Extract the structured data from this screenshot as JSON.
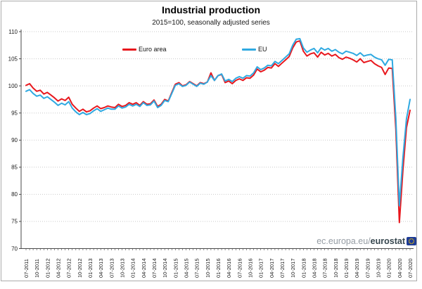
{
  "title": "Industrial production",
  "subtitle": "2015=100, seasonally adjusted series",
  "legend": [
    {
      "label": "Euro area",
      "color": "#e8171d"
    },
    {
      "label": "EU",
      "color": "#2fa9e1"
    }
  ],
  "watermark": {
    "prefix": "ec.europa.eu/",
    "bold": "eurostat"
  },
  "colors": {
    "euro_area": "#e8171d",
    "eu": "#2fa9e1",
    "grid": "#c9c9c9",
    "axis": "#4a4a4a",
    "tick_label": "#1a1a1a",
    "frame_border": "#ababab",
    "watermark_gray": "#959ca3",
    "watermark_dark": "#37474f",
    "flag_blue": "#1e3c96",
    "flag_stars": "#ffcc00"
  },
  "chart_data": {
    "type": "line",
    "title": "Industrial production",
    "subtitle": "2015=100, seasonally adjusted series",
    "xlabel": "",
    "ylabel": "",
    "ylim": [
      70,
      110
    ],
    "y_ticks": [
      70,
      75,
      80,
      85,
      90,
      95,
      100,
      105,
      110
    ],
    "grid": "horizontal-dotted",
    "legend_position": "top-inside",
    "x_frequency": "monthly",
    "months_per_tick": 3,
    "x_tick_labels": [
      "07-2011",
      "10-2011",
      "01-2012",
      "04-2012",
      "07-2012",
      "10-2012",
      "01-2013",
      "04-2013",
      "07-2013",
      "10-2013",
      "01-2014",
      "04-2014",
      "07-2014",
      "10-2014",
      "01-2015",
      "04-2015",
      "07-2015",
      "10-2015",
      "01-2016",
      "04-2016",
      "07-2016",
      "10-2016",
      "01-2017",
      "04-2017",
      "07-2017",
      "10-2017",
      "01-2018",
      "04-2018",
      "07-2018",
      "10-2018",
      "01-2019",
      "04-2019",
      "07-2019",
      "10-2019",
      "01-2020",
      "04-2020",
      "07-2020"
    ],
    "series": [
      {
        "name": "Euro area",
        "color": "#e8171d",
        "values": [
          100.1,
          100.4,
          99.6,
          99.0,
          99.2,
          98.5,
          98.8,
          98.3,
          97.8,
          97.2,
          97.6,
          97.3,
          97.9,
          96.6,
          95.9,
          95.3,
          95.7,
          95.2,
          95.4,
          95.9,
          96.3,
          95.8,
          96.0,
          96.3,
          96.1,
          96.0,
          96.6,
          96.2,
          96.4,
          96.9,
          96.6,
          96.9,
          96.4,
          97.1,
          96.6,
          96.7,
          97.4,
          96.2,
          96.6,
          97.5,
          97.2,
          98.8,
          100.3,
          100.6,
          100.0,
          100.2,
          100.8,
          100.4,
          100.0,
          100.6,
          100.4,
          100.7,
          102.4,
          101.0,
          101.9,
          102.1,
          100.6,
          100.9,
          100.4,
          101.0,
          101.3,
          101.0,
          101.5,
          101.4,
          102.0,
          103.1,
          102.6,
          102.9,
          103.4,
          103.3,
          104.1,
          103.6,
          104.2,
          104.8,
          105.4,
          107.0,
          108.1,
          108.3,
          106.4,
          105.5,
          105.9,
          106.1,
          105.3,
          106.2,
          105.7,
          106.0,
          105.5,
          105.8,
          105.2,
          104.9,
          105.3,
          105.1,
          104.8,
          104.4,
          105.0,
          104.3,
          104.5,
          104.7,
          104.1,
          103.7,
          103.4,
          102.1,
          103.3,
          103.2,
          92.0,
          74.8,
          84.5,
          92.3,
          95.5
        ]
      },
      {
        "name": "EU",
        "color": "#2fa9e1",
        "values": [
          99.0,
          99.3,
          98.6,
          98.1,
          98.3,
          97.7,
          98.0,
          97.5,
          97.0,
          96.4,
          96.8,
          96.5,
          97.1,
          95.9,
          95.2,
          94.7,
          95.1,
          94.7,
          94.9,
          95.4,
          95.8,
          95.3,
          95.6,
          95.9,
          95.7,
          95.7,
          96.3,
          95.9,
          96.1,
          96.6,
          96.3,
          96.6,
          96.2,
          96.9,
          96.4,
          96.5,
          97.2,
          96.0,
          96.4,
          97.3,
          97.1,
          98.6,
          100.1,
          100.4,
          99.9,
          100.1,
          100.7,
          100.3,
          99.9,
          100.5,
          100.3,
          100.7,
          101.9,
          101.0,
          101.9,
          102.2,
          100.9,
          101.2,
          100.8,
          101.4,
          101.7,
          101.4,
          101.9,
          101.8,
          102.4,
          103.5,
          103.0,
          103.3,
          103.8,
          103.7,
          104.5,
          104.1,
          104.7,
          105.3,
          105.9,
          107.5,
          108.6,
          108.7,
          107.0,
          106.2,
          106.6,
          106.9,
          106.1,
          107.0,
          106.6,
          106.9,
          106.4,
          106.7,
          106.2,
          105.9,
          106.4,
          106.2,
          106.0,
          105.6,
          106.1,
          105.5,
          105.7,
          105.8,
          105.3,
          105.0,
          104.8,
          103.8,
          104.9,
          104.8,
          94.0,
          77.9,
          86.8,
          93.9,
          97.5
        ]
      }
    ]
  }
}
